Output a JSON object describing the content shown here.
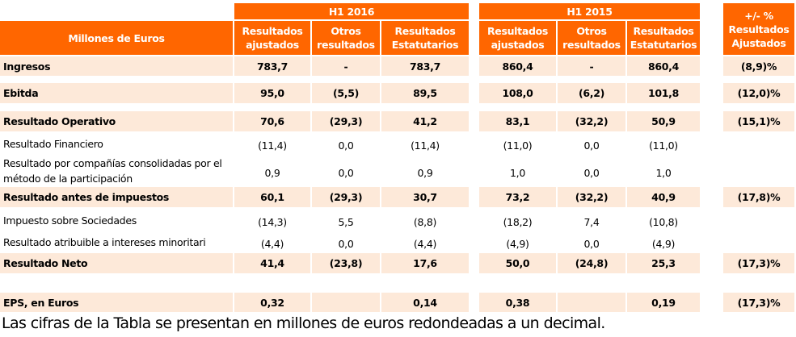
{
  "header": {
    "group_2016": "H1 2016",
    "group_2015": "H1 2015",
    "label_col": "Millones de Euros",
    "change_col": "+/- % Resultados Ajustados",
    "sub_cols": [
      "Resultados ajustados",
      "Otros resultados",
      "Resultados Estatutarios",
      "Resultados ajustados",
      "Otros resultados",
      "Resultados Estatutarios"
    ]
  },
  "rows": [
    {
      "label": "Ingresos",
      "bold": true,
      "shaded": true,
      "values": [
        "783,7",
        "-",
        "783,7",
        "860,4",
        "-",
        "860,4"
      ],
      "change": "(8,9)%"
    },
    {
      "label": "Ebitda",
      "bold": true,
      "shaded": true,
      "values": [
        "95,0",
        "(5,5)",
        "89,5",
        "108,0",
        "(6,2)",
        "101,8"
      ],
      "change": "(12,0)%"
    },
    {
      "label": "Resultado Operativo",
      "bold": true,
      "shaded": true,
      "values": [
        "70,6",
        "(29,3)",
        "41,2",
        "83,1",
        "(32,2)",
        "50,9"
      ],
      "change": "(15,1)%"
    },
    {
      "label": "Resultado Financiero",
      "bold": false,
      "shaded": false,
      "values": [
        "(11,4)",
        "0,0",
        "(11,4)",
        "(11,0)",
        "0,0",
        "(11,0)"
      ],
      "change": ""
    },
    {
      "label": "Resultado por compañías consolidadas por el método de la participación",
      "bold": false,
      "shaded": false,
      "values": [
        "0,9",
        "0,0",
        "0,9",
        "1,0",
        "0,0",
        "1,0"
      ],
      "change": ""
    },
    {
      "label": "Resultado antes de impuestos",
      "bold": true,
      "shaded": true,
      "values": [
        "60,1",
        "(29,3)",
        "30,7",
        "73,2",
        "(32,2)",
        "40,9"
      ],
      "change": "(17,8)%"
    },
    {
      "label": "Impuesto sobre Sociedades",
      "bold": false,
      "shaded": false,
      "values": [
        "(14,3)",
        "5,5",
        "(8,8)",
        "(18,2)",
        "7,4",
        "(10,8)"
      ],
      "change": ""
    },
    {
      "label": "Resultado atribuible a intereses minoritari",
      "bold": false,
      "shaded": false,
      "values": [
        "(4,4)",
        "0,0",
        "(4,4)",
        "(4,9)",
        "0,0",
        "(4,9)"
      ],
      "change": ""
    },
    {
      "label": "Resultado Neto",
      "bold": true,
      "shaded": true,
      "values": [
        "41,4",
        "(23,8)",
        "17,6",
        "50,0",
        "(24,8)",
        "25,3"
      ],
      "change": "(17,3)%"
    },
    {
      "label": "EPS, en Euros",
      "bold": true,
      "shaded": true,
      "values": [
        "0,32",
        "",
        "0,14",
        "0,38",
        "",
        "0,19"
      ],
      "change": "(17,3)%"
    }
  ],
  "footnote": "Las cifras de la Tabla se presentan en millones de euros redondeadas a un decimal.",
  "colors": {
    "header": "#FF6600",
    "shade": "#FDE9D9"
  }
}
